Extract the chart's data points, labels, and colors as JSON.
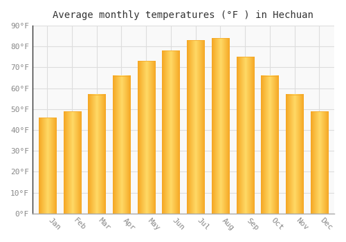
{
  "title": "Average monthly temperatures (°F ) in Hechuan",
  "months": [
    "Jan",
    "Feb",
    "Mar",
    "Apr",
    "May",
    "Jun",
    "Jul",
    "Aug",
    "Sep",
    "Oct",
    "Nov",
    "Dec"
  ],
  "values": [
    46,
    49,
    57,
    66,
    73,
    78,
    83,
    84,
    75,
    66,
    57,
    49
  ],
  "bar_color_center": "#FFD966",
  "bar_color_edge": "#F5A623",
  "ylim": [
    0,
    90
  ],
  "yticks": [
    0,
    10,
    20,
    30,
    40,
    50,
    60,
    70,
    80,
    90
  ],
  "background_color": "#ffffff",
  "plot_bg_color": "#f9f9f9",
  "grid_color": "#dddddd",
  "title_fontsize": 10,
  "tick_fontsize": 8,
  "tick_color": "#888888",
  "bar_width": 0.7,
  "xlabel_rotation": -45,
  "xlabel_ha": "left"
}
